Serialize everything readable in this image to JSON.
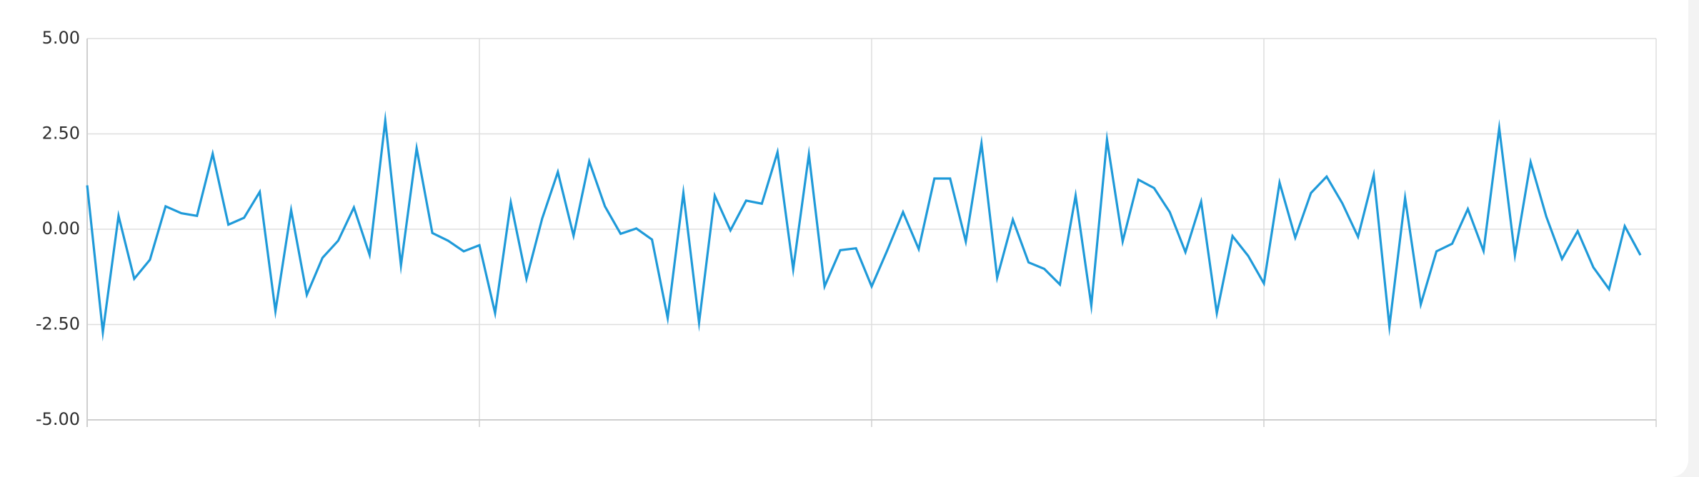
{
  "chart_data": {
    "type": "line",
    "title": "",
    "xlabel": "",
    "ylabel": "",
    "ylim": [
      -5,
      5
    ],
    "yticks": [
      5,
      2.5,
      0,
      -2.5,
      -5
    ],
    "ytick_labels": [
      "5.00",
      "2.50",
      "0.00",
      "-2.50",
      "-5.00"
    ],
    "grid": true,
    "x": [
      0,
      1,
      2,
      3,
      4,
      5,
      6,
      7,
      8,
      9,
      10,
      11,
      12,
      13,
      14,
      15,
      16,
      17,
      18,
      19,
      20,
      21,
      22,
      23,
      24,
      25,
      26,
      27,
      28,
      29,
      30,
      31,
      32,
      33,
      34,
      35,
      36,
      37,
      38,
      39,
      40,
      41,
      42,
      43,
      44,
      45,
      46,
      47,
      48,
      49,
      50,
      51,
      52,
      53,
      54,
      55,
      56,
      57,
      58,
      59,
      60,
      61,
      62,
      63,
      64,
      65,
      66,
      67,
      68,
      69,
      70,
      71,
      72,
      73,
      74,
      75,
      76,
      77,
      78,
      79,
      80,
      81,
      82,
      83,
      84,
      85,
      86,
      87,
      88,
      89,
      90,
      91,
      92,
      93,
      94,
      95,
      96,
      97,
      98,
      99
    ],
    "xlim": [
      0,
      100
    ],
    "xticks": [
      0,
      25,
      50,
      75,
      100
    ],
    "series": [
      {
        "color": "#1f9ad9",
        "values": [
          1.15,
          -2.7,
          0.35,
          -1.3,
          -0.8,
          0.6,
          0.42,
          0.35,
          1.98,
          0.12,
          0.3,
          0.98,
          -2.15,
          0.5,
          -1.72,
          -0.75,
          -0.3,
          0.57,
          -0.67,
          2.85,
          -0.95,
          2.12,
          -0.1,
          -0.3,
          -0.58,
          -0.42,
          -2.2,
          0.7,
          -1.3,
          0.28,
          1.5,
          -0.17,
          1.78,
          0.6,
          -0.12,
          0.02,
          -0.27,
          -2.33,
          0.95,
          -2.45,
          0.88,
          -0.03,
          0.75,
          0.67,
          2.02,
          -1.05,
          1.96,
          -1.5,
          -0.55,
          -0.5,
          -1.5,
          -0.55,
          0.45,
          -0.52,
          1.33,
          1.33,
          -0.32,
          2.25,
          -1.27,
          0.25,
          -0.87,
          -1.04,
          -1.45,
          0.88,
          -2.0,
          2.35,
          -0.32,
          1.3,
          1.08,
          0.45,
          -0.6,
          0.72,
          -2.2,
          -0.18,
          -0.7,
          -1.42,
          1.22,
          -0.22,
          0.95,
          1.38,
          0.68,
          -0.2,
          1.42,
          -2.55,
          0.82,
          -1.97,
          -0.58,
          -0.38,
          0.53,
          -0.57,
          2.65,
          -0.68,
          1.76,
          0.33,
          -0.78,
          -0.05,
          -1.0,
          -1.57,
          0.08,
          -0.68
        ]
      }
    ]
  }
}
